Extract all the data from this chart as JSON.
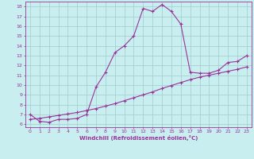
{
  "xlabel": "Windchill (Refroidissement éolien,°C)",
  "xlim": [
    -0.5,
    23.5
  ],
  "ylim": [
    5.7,
    18.5
  ],
  "xticks": [
    0,
    1,
    2,
    3,
    4,
    5,
    6,
    7,
    8,
    9,
    10,
    11,
    12,
    13,
    14,
    15,
    16,
    17,
    18,
    19,
    20,
    21,
    22,
    23
  ],
  "yticks": [
    6,
    7,
    8,
    9,
    10,
    11,
    12,
    13,
    14,
    15,
    16,
    17,
    18
  ],
  "bg_color": "#c8eef0",
  "grid_color": "#a0cccc",
  "line_color": "#993399",
  "line1_x": [
    0,
    1,
    2,
    3,
    4,
    5,
    6,
    7,
    8,
    9,
    10,
    11,
    12,
    13,
    14,
    15,
    16,
    17,
    18,
    19,
    20,
    21,
    22,
    23
  ],
  "line1_y": [
    7.0,
    6.3,
    6.2,
    6.5,
    6.5,
    6.6,
    7.0,
    9.8,
    11.3,
    13.3,
    14.0,
    15.0,
    17.8,
    17.5,
    18.2,
    17.5,
    16.2,
    11.3,
    11.2,
    11.2,
    11.5,
    12.3,
    12.4,
    13.0
  ],
  "line2_x": [
    0,
    1,
    2,
    3,
    4,
    5,
    6,
    7,
    8,
    9,
    10,
    11,
    12,
    13,
    14,
    15,
    16,
    17,
    18,
    19,
    20,
    21,
    22,
    23
  ],
  "line2_y": [
    6.5,
    6.6,
    6.75,
    6.9,
    7.05,
    7.2,
    7.4,
    7.6,
    7.85,
    8.1,
    8.4,
    8.7,
    9.0,
    9.3,
    9.65,
    9.95,
    10.25,
    10.55,
    10.8,
    11.0,
    11.2,
    11.4,
    11.6,
    11.85
  ]
}
